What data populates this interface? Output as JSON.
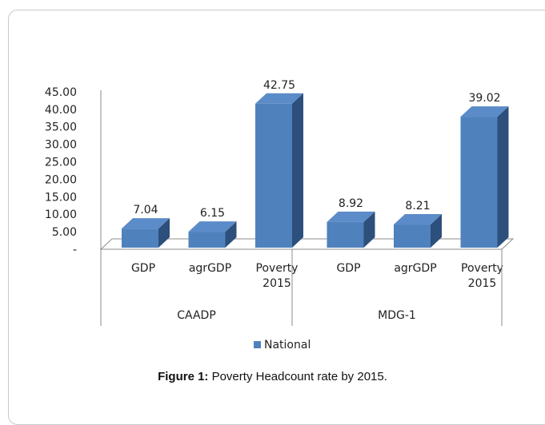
{
  "chart_data": {
    "type": "bar",
    "groups": [
      {
        "label": "CAADP",
        "categories": [
          "GDP",
          "agrGDP",
          "Poverty 2015"
        ]
      },
      {
        "label": "MDG-1",
        "categories": [
          "GDP",
          "agrGDP",
          "Poverty 2015"
        ]
      }
    ],
    "series": [
      {
        "name": "National",
        "values": [
          7.04,
          6.15,
          42.75,
          8.92,
          8.21,
          39.02
        ],
        "color": "#4f81bd"
      }
    ],
    "data_labels": [
      "7.04",
      "6.15",
      "42.75",
      "8.92",
      "8.21",
      "39.02"
    ],
    "y_ticks": [
      "-",
      "5.00",
      "10.00",
      "15.00",
      "20.00",
      "25.00",
      "30.00",
      "35.00",
      "40.00",
      "45.00"
    ],
    "ylim": [
      0,
      45
    ],
    "legend_position": "bottom",
    "style": "3d-column"
  },
  "caption": {
    "label": "Figure 1:",
    "text": " Poverty Headcount rate by 2015."
  }
}
